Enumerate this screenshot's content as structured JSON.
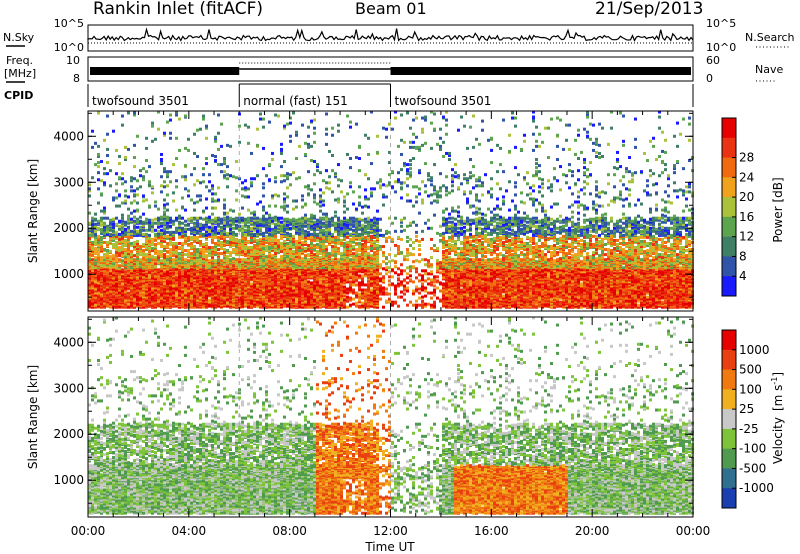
{
  "header": {
    "station": "Rankin Inlet (fitACF)",
    "beam": "Beam 01",
    "date": "21/Sep/2013"
  },
  "nsky_panel": {
    "left_label": "N.Sky",
    "right_label": "N.Search",
    "ticks_left": [
      "10^5",
      "10^0"
    ],
    "ticks_right": [
      "10^5",
      "10^0"
    ]
  },
  "freq_panel": {
    "left_label_line1": "Freq.",
    "left_label_line2": "[MHz]",
    "right_label": "Nave",
    "ticks_left": [
      "10",
      "8"
    ],
    "ticks_right": [
      "60",
      "0"
    ]
  },
  "cpid_panel": {
    "label": "CPID",
    "segments": [
      {
        "name": "twofsound 3501",
        "start_hour": 0,
        "end_hour": 6
      },
      {
        "name": "normal (fast) 151",
        "start_hour": 6,
        "end_hour": 12
      },
      {
        "name": "twofsound 3501",
        "start_hour": 12,
        "end_hour": 24
      }
    ]
  },
  "chart_data": [
    {
      "type": "heatmap",
      "title": "",
      "xlabel": "",
      "ylabel": "Slant Range [km]",
      "ylim": [
        200,
        4550
      ],
      "xlim_hours": [
        0,
        24
      ],
      "y_ticks": [
        "1000",
        "2000",
        "3000",
        "4000"
      ],
      "colorbar": {
        "label": "Power [dB]",
        "ticks": [
          "4",
          "8",
          "12",
          "16",
          "20",
          "24",
          "28"
        ],
        "colors": [
          "#1a1aff",
          "#2f54a8",
          "#3f7f66",
          "#5da44f",
          "#a9c23a",
          "#f0a21c",
          "#f06a10",
          "#ea3312",
          "#e60000"
        ]
      }
    },
    {
      "type": "heatmap",
      "title": "",
      "xlabel": "Time UT",
      "ylabel": "Slant Range [km]",
      "ylim": [
        200,
        4550
      ],
      "xlim_hours": [
        0,
        24
      ],
      "x_ticks": [
        "00:00",
        "04:00",
        "08:00",
        "12:00",
        "16:00",
        "20:00",
        "00:00"
      ],
      "y_ticks": [
        "1000",
        "2000",
        "3000",
        "4000"
      ],
      "colorbar": {
        "label": "Velocity",
        "units_prefix": "[m s",
        "units_exp": "-1",
        "units_suffix": "]",
        "ticks": [
          "1000",
          "500",
          "100",
          "25",
          "-25",
          "-100",
          "-500",
          "-1000"
        ],
        "colors": [
          "#1a3fb0",
          "#2f6f8f",
          "#4f9a4f",
          "#7dc43a",
          "#c8c8c8",
          "#f0b020",
          "#f07a10",
          "#e84010",
          "#e60000"
        ]
      }
    }
  ]
}
